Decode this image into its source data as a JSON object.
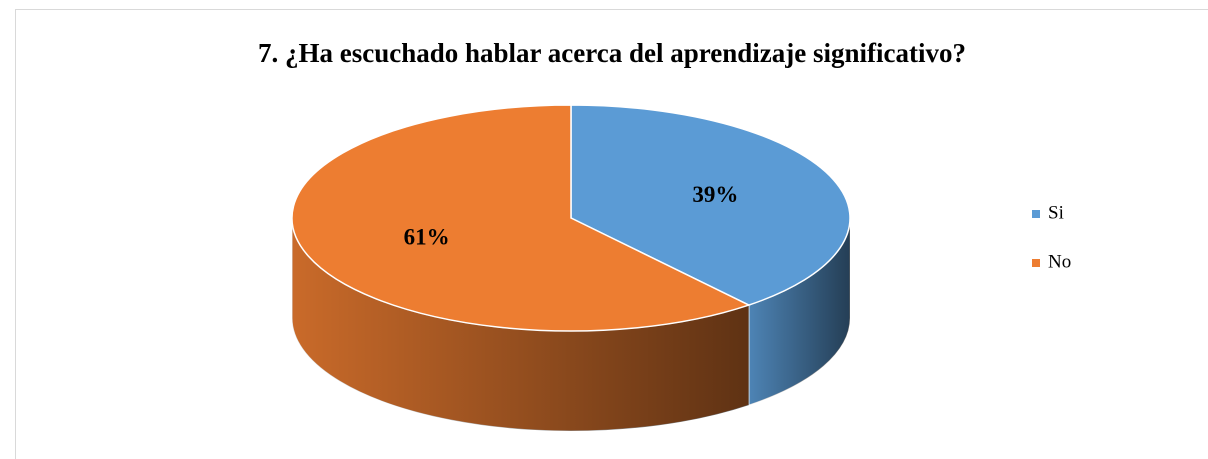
{
  "chart_data": {
    "type": "pie",
    "title": "7. ¿Ha escuchado hablar acerca del aprendizaje significativo?",
    "categories": [
      "Si",
      "No"
    ],
    "values": [
      39,
      61
    ],
    "value_labels": [
      "39%",
      "61%"
    ],
    "colors": [
      "#5b9bd5",
      "#ed7d31"
    ],
    "legend": "right"
  }
}
